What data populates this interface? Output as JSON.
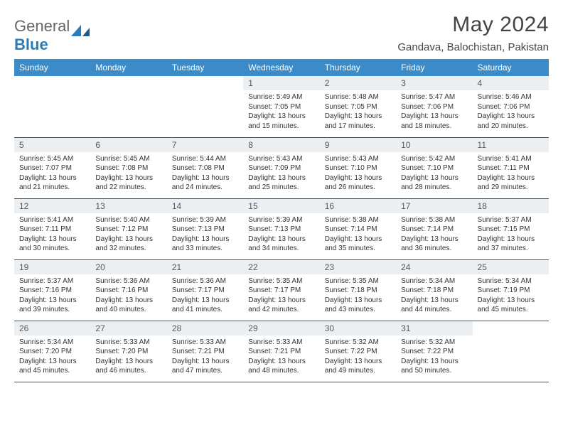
{
  "logo": {
    "text1": "General",
    "text2": "Blue"
  },
  "title": "May 2024",
  "location": "Gandava, Balochistan, Pakistan",
  "dayHeaders": [
    "Sunday",
    "Monday",
    "Tuesday",
    "Wednesday",
    "Thursday",
    "Friday",
    "Saturday"
  ],
  "colors": {
    "header_bg": "#3b8bc8",
    "header_text": "#ffffff",
    "daynum_bg": "#eceff1",
    "border": "#2a5a8a",
    "logo_blue": "#2a7db8"
  },
  "weeks": [
    [
      null,
      null,
      null,
      {
        "n": "1",
        "sr": "5:49 AM",
        "ss": "7:05 PM",
        "dl": "13 hours and 15 minutes."
      },
      {
        "n": "2",
        "sr": "5:48 AM",
        "ss": "7:05 PM",
        "dl": "13 hours and 17 minutes."
      },
      {
        "n": "3",
        "sr": "5:47 AM",
        "ss": "7:06 PM",
        "dl": "13 hours and 18 minutes."
      },
      {
        "n": "4",
        "sr": "5:46 AM",
        "ss": "7:06 PM",
        "dl": "13 hours and 20 minutes."
      }
    ],
    [
      {
        "n": "5",
        "sr": "5:45 AM",
        "ss": "7:07 PM",
        "dl": "13 hours and 21 minutes."
      },
      {
        "n": "6",
        "sr": "5:45 AM",
        "ss": "7:08 PM",
        "dl": "13 hours and 22 minutes."
      },
      {
        "n": "7",
        "sr": "5:44 AM",
        "ss": "7:08 PM",
        "dl": "13 hours and 24 minutes."
      },
      {
        "n": "8",
        "sr": "5:43 AM",
        "ss": "7:09 PM",
        "dl": "13 hours and 25 minutes."
      },
      {
        "n": "9",
        "sr": "5:43 AM",
        "ss": "7:10 PM",
        "dl": "13 hours and 26 minutes."
      },
      {
        "n": "10",
        "sr": "5:42 AM",
        "ss": "7:10 PM",
        "dl": "13 hours and 28 minutes."
      },
      {
        "n": "11",
        "sr": "5:41 AM",
        "ss": "7:11 PM",
        "dl": "13 hours and 29 minutes."
      }
    ],
    [
      {
        "n": "12",
        "sr": "5:41 AM",
        "ss": "7:11 PM",
        "dl": "13 hours and 30 minutes."
      },
      {
        "n": "13",
        "sr": "5:40 AM",
        "ss": "7:12 PM",
        "dl": "13 hours and 32 minutes."
      },
      {
        "n": "14",
        "sr": "5:39 AM",
        "ss": "7:13 PM",
        "dl": "13 hours and 33 minutes."
      },
      {
        "n": "15",
        "sr": "5:39 AM",
        "ss": "7:13 PM",
        "dl": "13 hours and 34 minutes."
      },
      {
        "n": "16",
        "sr": "5:38 AM",
        "ss": "7:14 PM",
        "dl": "13 hours and 35 minutes."
      },
      {
        "n": "17",
        "sr": "5:38 AM",
        "ss": "7:14 PM",
        "dl": "13 hours and 36 minutes."
      },
      {
        "n": "18",
        "sr": "5:37 AM",
        "ss": "7:15 PM",
        "dl": "13 hours and 37 minutes."
      }
    ],
    [
      {
        "n": "19",
        "sr": "5:37 AM",
        "ss": "7:16 PM",
        "dl": "13 hours and 39 minutes."
      },
      {
        "n": "20",
        "sr": "5:36 AM",
        "ss": "7:16 PM",
        "dl": "13 hours and 40 minutes."
      },
      {
        "n": "21",
        "sr": "5:36 AM",
        "ss": "7:17 PM",
        "dl": "13 hours and 41 minutes."
      },
      {
        "n": "22",
        "sr": "5:35 AM",
        "ss": "7:17 PM",
        "dl": "13 hours and 42 minutes."
      },
      {
        "n": "23",
        "sr": "5:35 AM",
        "ss": "7:18 PM",
        "dl": "13 hours and 43 minutes."
      },
      {
        "n": "24",
        "sr": "5:34 AM",
        "ss": "7:18 PM",
        "dl": "13 hours and 44 minutes."
      },
      {
        "n": "25",
        "sr": "5:34 AM",
        "ss": "7:19 PM",
        "dl": "13 hours and 45 minutes."
      }
    ],
    [
      {
        "n": "26",
        "sr": "5:34 AM",
        "ss": "7:20 PM",
        "dl": "13 hours and 45 minutes."
      },
      {
        "n": "27",
        "sr": "5:33 AM",
        "ss": "7:20 PM",
        "dl": "13 hours and 46 minutes."
      },
      {
        "n": "28",
        "sr": "5:33 AM",
        "ss": "7:21 PM",
        "dl": "13 hours and 47 minutes."
      },
      {
        "n": "29",
        "sr": "5:33 AM",
        "ss": "7:21 PM",
        "dl": "13 hours and 48 minutes."
      },
      {
        "n": "30",
        "sr": "5:32 AM",
        "ss": "7:22 PM",
        "dl": "13 hours and 49 minutes."
      },
      {
        "n": "31",
        "sr": "5:32 AM",
        "ss": "7:22 PM",
        "dl": "13 hours and 50 minutes."
      },
      null
    ]
  ],
  "labels": {
    "sunrise": "Sunrise: ",
    "sunset": "Sunset: ",
    "daylight": "Daylight: "
  }
}
